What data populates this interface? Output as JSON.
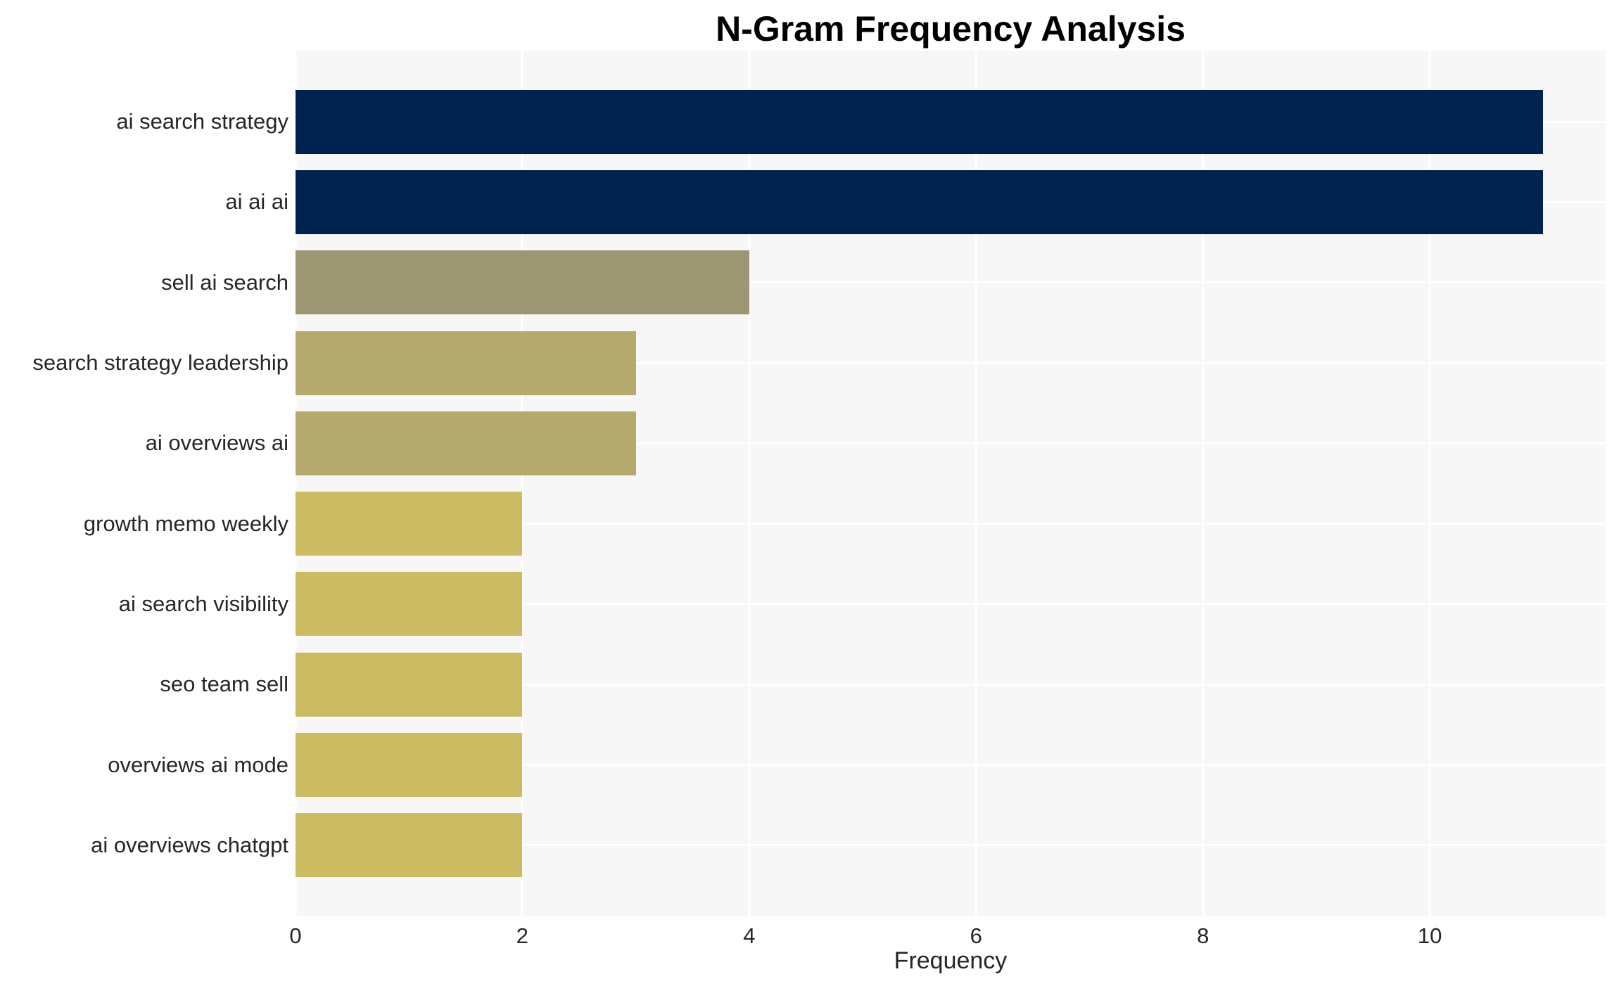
{
  "chart_data": {
    "type": "bar",
    "orientation": "horizontal",
    "title": "N-Gram Frequency Analysis",
    "xlabel": "Frequency",
    "ylabel": "",
    "categories": [
      "ai search strategy",
      "ai ai ai",
      "sell ai search",
      "search strategy leadership",
      "ai overviews ai",
      "growth memo weekly",
      "ai search visibility",
      "seo team sell",
      "overviews ai mode",
      "ai overviews chatgpt"
    ],
    "values": [
      11,
      11,
      4,
      3,
      3,
      2,
      2,
      2,
      2,
      2
    ],
    "bar_colors": [
      "#00224e",
      "#00224e",
      "#9d9673",
      "#b4aa6e",
      "#b4aa6e",
      "#cbbc62",
      "#cbbc62",
      "#cbbc62",
      "#cbbc62",
      "#cbbc62"
    ],
    "xticks": [
      0,
      2,
      4,
      6,
      8,
      10
    ],
    "xlim": [
      0,
      11.55
    ],
    "grid": true,
    "legend": false,
    "plot_background": "#f7f7f7",
    "gridline_color": "#ffffff",
    "text_color": "#262626",
    "title_color": "#000000"
  }
}
